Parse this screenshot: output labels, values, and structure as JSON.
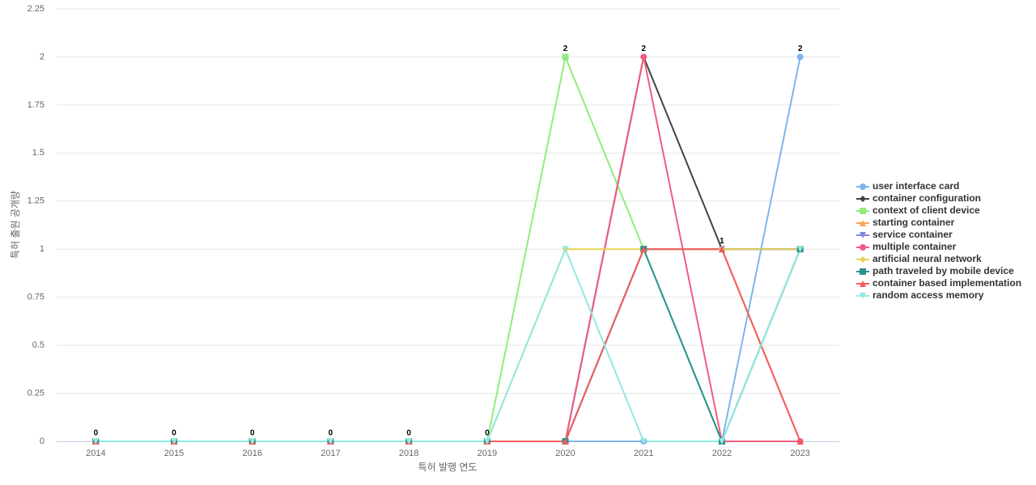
{
  "chart_data": {
    "type": "line",
    "x_label": "특허 발행 연도",
    "y_label": "특허 출원 공개량",
    "categories": [
      "2014",
      "2015",
      "2016",
      "2017",
      "2018",
      "2019",
      "2020",
      "2021",
      "2022",
      "2023"
    ],
    "ylim": [
      0,
      2.25
    ],
    "yticks": [
      0,
      0.25,
      0.5,
      0.75,
      1,
      1.25,
      1.5,
      1.75,
      2,
      2.25
    ],
    "grid": true,
    "legend": "right",
    "series": [
      {
        "name": "user interface card",
        "color": "#7cb5ec",
        "marker": "circle",
        "values": [
          0,
          0,
          0,
          0,
          0,
          0,
          0,
          0,
          0,
          2
        ]
      },
      {
        "name": "container configuration",
        "color": "#434348",
        "marker": "diamond",
        "values": [
          0,
          0,
          0,
          0,
          0,
          0,
          0,
          2,
          1,
          1
        ]
      },
      {
        "name": "context of client device",
        "color": "#90ed7d",
        "marker": "square",
        "values": [
          0,
          0,
          0,
          0,
          0,
          0,
          2,
          1,
          0,
          1
        ]
      },
      {
        "name": "starting container",
        "color": "#f7a35c",
        "marker": "triangle",
        "values": [
          0,
          0,
          0,
          0,
          0,
          0,
          0,
          1,
          1,
          0
        ]
      },
      {
        "name": "service container",
        "color": "#8085e9",
        "marker": "triangle-down",
        "values": [
          0,
          0,
          0,
          0,
          0,
          0,
          0,
          1,
          1,
          1
        ]
      },
      {
        "name": "multiple container",
        "color": "#f15c80",
        "marker": "circle",
        "values": [
          0,
          0,
          0,
          0,
          0,
          0,
          0,
          2,
          0,
          0
        ]
      },
      {
        "name": "artificial neural network",
        "color": "#e4d354",
        "marker": "diamond",
        "values": [
          0,
          0,
          0,
          0,
          0,
          0,
          1,
          1,
          1,
          1
        ]
      },
      {
        "name": "path traveled by mobile device",
        "color": "#2b908f",
        "marker": "square",
        "values": [
          0,
          0,
          0,
          0,
          0,
          0,
          0,
          1,
          0,
          1
        ]
      },
      {
        "name": "container based implementation",
        "color": "#f45b5b",
        "marker": "triangle",
        "values": [
          0,
          0,
          0,
          0,
          0,
          0,
          0,
          1,
          1,
          0
        ]
      },
      {
        "name": "random access memory",
        "color": "#91e8e1",
        "marker": "triangle-down",
        "values": [
          0,
          0,
          0,
          0,
          0,
          0,
          1,
          0,
          0,
          1
        ]
      }
    ]
  }
}
